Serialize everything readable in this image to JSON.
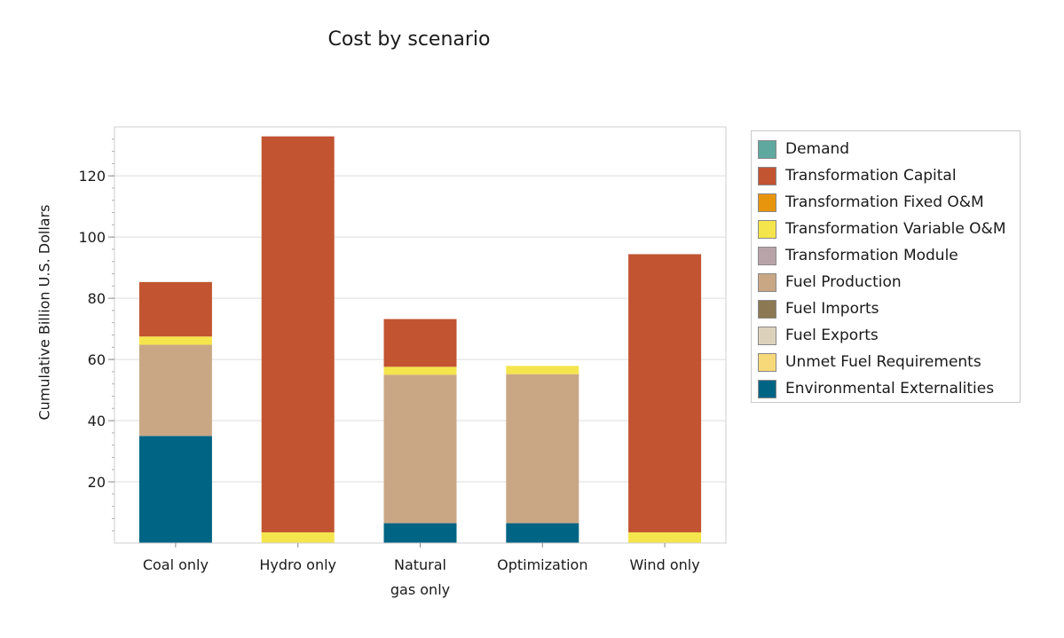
{
  "chart_data": {
    "type": "bar",
    "stacked": true,
    "title": "Cost by scenario",
    "xlabel": "",
    "ylabel": "Cumulative Billion U.S. Dollars",
    "ylim": [
      0,
      136
    ],
    "yticks": [
      20,
      40,
      60,
      80,
      100,
      120
    ],
    "grid": true,
    "legend_position": "right",
    "categories": [
      "Coal only",
      "Hydro only",
      "Natural gas only",
      "Optimization",
      "Wind only"
    ],
    "series": [
      {
        "name": "Demand",
        "color": "#5fa8a0",
        "values": [
          0,
          0,
          0,
          0,
          0
        ]
      },
      {
        "name": "Transformation Capital",
        "color": "#c25431",
        "values": [
          17.8,
          129.4,
          15.6,
          0,
          90.9
        ]
      },
      {
        "name": "Transformation Fixed O&M",
        "color": "#e8950e",
        "values": [
          0,
          0,
          0,
          0,
          0
        ]
      },
      {
        "name": "Transformation Variable O&M",
        "color": "#f5e54c",
        "values": [
          2.7,
          3.5,
          2.6,
          2.7,
          3.5
        ]
      },
      {
        "name": "Transformation Module",
        "color": "#b8a4a8",
        "values": [
          0,
          0,
          0,
          0,
          0
        ]
      },
      {
        "name": "Fuel Production",
        "color": "#c9a785",
        "values": [
          29.8,
          0,
          48.5,
          48.7,
          0
        ]
      },
      {
        "name": "Fuel Imports",
        "color": "#8c7853",
        "values": [
          0,
          0,
          0,
          0,
          0
        ]
      },
      {
        "name": "Fuel Exports",
        "color": "#dcd2bc",
        "values": [
          0,
          0,
          0,
          0,
          0
        ]
      },
      {
        "name": "Unmet Fuel Requirements",
        "color": "#f7d97a",
        "values": [
          0,
          0,
          0,
          0,
          0
        ]
      },
      {
        "name": "Environmental Externalities",
        "color": "#006484",
        "values": [
          35.0,
          0,
          6.5,
          6.5,
          0
        ]
      }
    ]
  }
}
